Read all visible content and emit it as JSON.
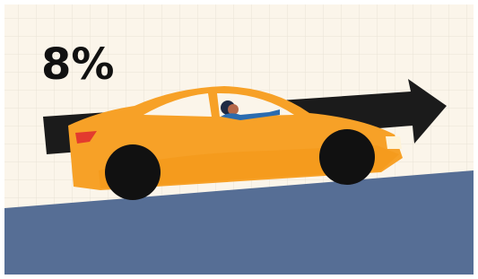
{
  "label": "8%"
}
